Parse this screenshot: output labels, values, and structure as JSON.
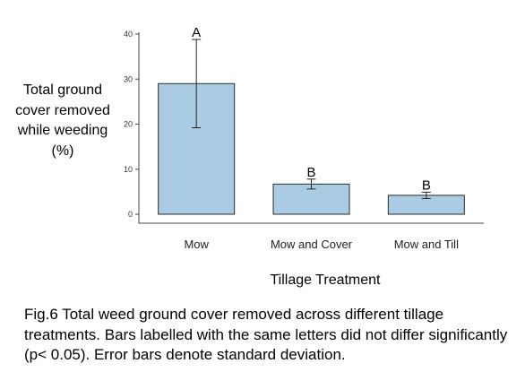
{
  "chart_data": {
    "type": "bar",
    "categories": [
      "Mow",
      "Mow and Cover",
      "Mow and Till"
    ],
    "values": [
      29,
      6.7,
      4.2
    ],
    "error_sd": [
      9.8,
      1.1,
      0.7
    ],
    "significance_letters": [
      "A",
      "B",
      "B"
    ],
    "ylim": [
      0,
      40
    ],
    "yticks": [
      "0",
      "10",
      "20",
      "30",
      "40"
    ],
    "ylabel": "Total ground cover removed while weeding (%)",
    "xlabel": "Tillage Treatment",
    "grid": false,
    "bar_color": "#a9cce3",
    "bar_edge_color": "#2b2b2b"
  },
  "caption": "Fig.6 Total weed ground cover removed across different tillage treatments. Bars labelled with the same letters did not differ significantly (p< 0.05). Error bars denote standard deviation."
}
